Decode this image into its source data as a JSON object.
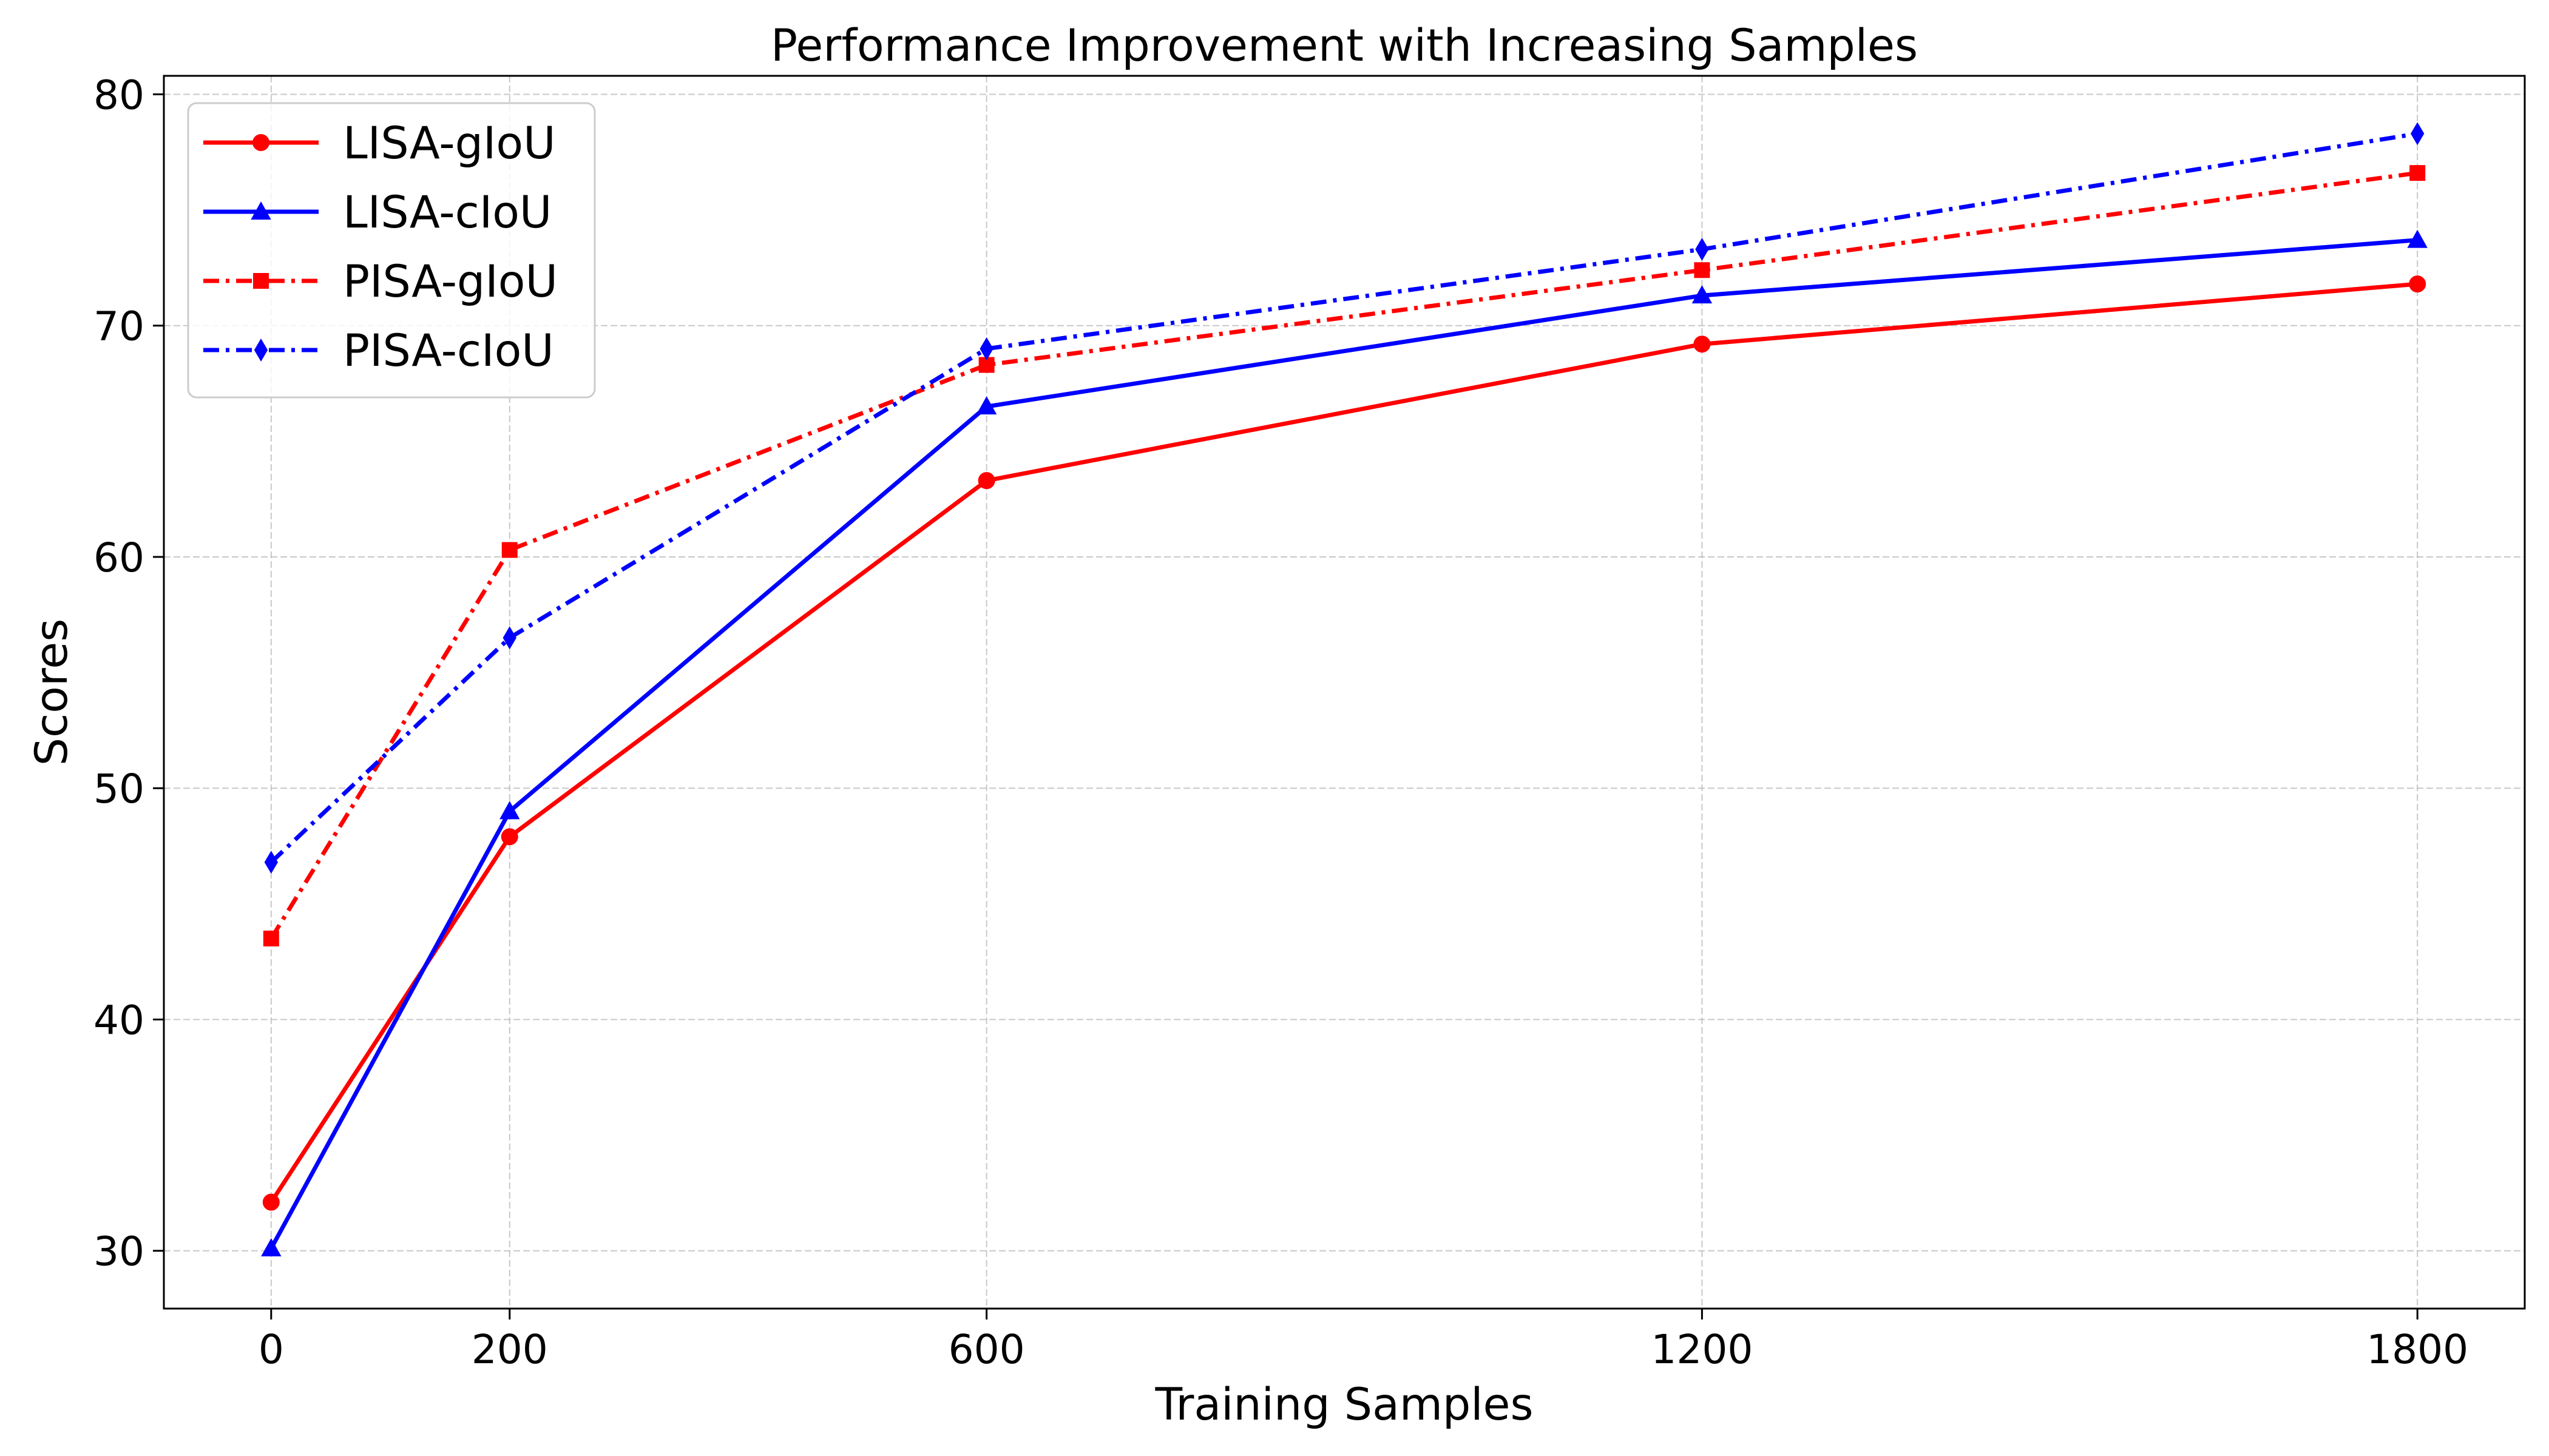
{
  "chart_data": {
    "type": "line",
    "title": "Performance Improvement with Increasing Samples",
    "xlabel": "Training Samples",
    "ylabel": "Scores",
    "x": [
      0,
      200,
      600,
      1200,
      1800
    ],
    "x_tick_labels": [
      "0",
      "200",
      "600",
      "1200",
      "1800"
    ],
    "xlim": [
      -90,
      1890
    ],
    "ylim": [
      27.5,
      80.8
    ],
    "y_ticks": [
      30,
      40,
      50,
      60,
      70,
      80
    ],
    "y_tick_labels": [
      "30",
      "40",
      "50",
      "60",
      "70",
      "80"
    ],
    "grid": true,
    "legend_position": "top-left",
    "series": [
      {
        "name": "LISA-gIoU",
        "color": "#ff0000",
        "line_style": "solid",
        "marker": "circle",
        "values": [
          32.1,
          47.9,
          63.3,
          69.2,
          71.8
        ]
      },
      {
        "name": "LISA-cIoU",
        "color": "#0000ff",
        "line_style": "solid",
        "marker": "triangle",
        "values": [
          30.1,
          49.0,
          66.5,
          71.3,
          73.7
        ]
      },
      {
        "name": "PISA-gIoU",
        "color": "#ff0000",
        "line_style": "dashdot",
        "marker": "square",
        "values": [
          43.5,
          60.3,
          68.3,
          72.4,
          76.6
        ]
      },
      {
        "name": "PISA-cIoU",
        "color": "#0000ff",
        "line_style": "dashdot",
        "marker": "diamond",
        "values": [
          46.8,
          56.5,
          69.0,
          73.3,
          78.3
        ]
      }
    ]
  }
}
